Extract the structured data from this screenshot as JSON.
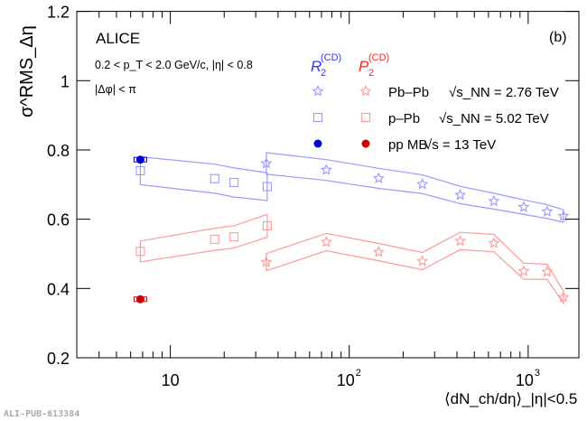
{
  "chart_data": {
    "type": "scatter",
    "title": "",
    "panel_label": "(b)",
    "experiment": "ALICE",
    "cuts": [
      "0.2 < p_T < 2.0 GeV/c, |η| < 0.8",
      "|Δφ| < π"
    ],
    "xlabel": "⟨dN_ch/dη⟩_|η|<0.5",
    "ylabel": "σ^RMS_Δη",
    "xscale": "log",
    "xlim": [
      3,
      1920
    ],
    "ylim": [
      0.2,
      1.2
    ],
    "yticks": [
      "0.2",
      "0.4",
      "0.6",
      "0.8",
      "1",
      "1.2"
    ],
    "xticks": [
      {
        "value": 10,
        "label": "10",
        "exp": ""
      },
      {
        "value": 100,
        "label": "10",
        "exp": "2"
      },
      {
        "value": 1000,
        "label": "10",
        "exp": "3"
      }
    ],
    "legend": {
      "placement": "top-right",
      "column_headers": [
        {
          "base": "R",
          "sub": "2",
          "sup": "(CD)",
          "color": "#3333ff"
        },
        {
          "base": "P",
          "sub": "2",
          "sup": "(CD)",
          "color": "#ff2222"
        }
      ],
      "rows": [
        {
          "system": "Pb–Pb",
          "energy": "√s_NN = 2.76 TeV",
          "marker": "open-star"
        },
        {
          "system": "p–Pb",
          "energy": "√s_NN = 5.02 TeV",
          "marker": "open-square"
        },
        {
          "system": "pp MB",
          "energy": "√s = 13 TeV",
          "marker": "filled-circle"
        }
      ]
    },
    "series": [
      {
        "name": "R2 Pb–Pb",
        "marker": "star",
        "color": "#9999ff",
        "x": [
          34.4,
          74.5,
          146,
          256,
          417,
          643,
          944,
          1277,
          1574
        ],
        "y": [
          0.761,
          0.742,
          0.718,
          0.701,
          0.67,
          0.652,
          0.635,
          0.622,
          0.609
        ],
        "sys": [
          0.031,
          0.03,
          0.029,
          0.027,
          0.025,
          0.023,
          0.021,
          0.02,
          0.018
        ]
      },
      {
        "name": "P2 Pb–Pb",
        "marker": "star",
        "color": "#ff9999",
        "x": [
          34.4,
          74.5,
          146,
          256,
          417,
          643,
          944,
          1277,
          1574
        ],
        "y": [
          0.476,
          0.534,
          0.505,
          0.479,
          0.537,
          0.531,
          0.45,
          0.448,
          0.375
        ],
        "sys": [
          0.025,
          0.025,
          0.025,
          0.025,
          0.025,
          0.025,
          0.023,
          0.022,
          0.018
        ]
      },
      {
        "name": "R2 p–Pb",
        "marker": "square",
        "color": "#9999ff",
        "x": [
          6.8,
          17.7,
          22.7,
          34.8
        ],
        "y": [
          0.74,
          0.717,
          0.706,
          0.694
        ],
        "sys": [
          0.04,
          0.042,
          0.042,
          0.04
        ]
      },
      {
        "name": "P2 p–Pb",
        "marker": "square",
        "color": "#ff9999",
        "x": [
          6.8,
          17.7,
          22.7,
          34.8
        ],
        "y": [
          0.507,
          0.542,
          0.549,
          0.581
        ],
        "sys": [
          0.03,
          0.032,
          0.032,
          0.033
        ]
      },
      {
        "name": "R2 pp MB",
        "marker": "circle",
        "color": "#0000cc",
        "x": [
          6.8
        ],
        "y": [
          0.772
        ],
        "sys": [
          0.004
        ]
      },
      {
        "name": "P2 pp MB",
        "marker": "circle",
        "color": "#cc0000",
        "x": [
          6.8
        ],
        "y": [
          0.369
        ],
        "sys": [
          0.004
        ]
      }
    ]
  },
  "footer_id": "ALI-PUB-613384"
}
